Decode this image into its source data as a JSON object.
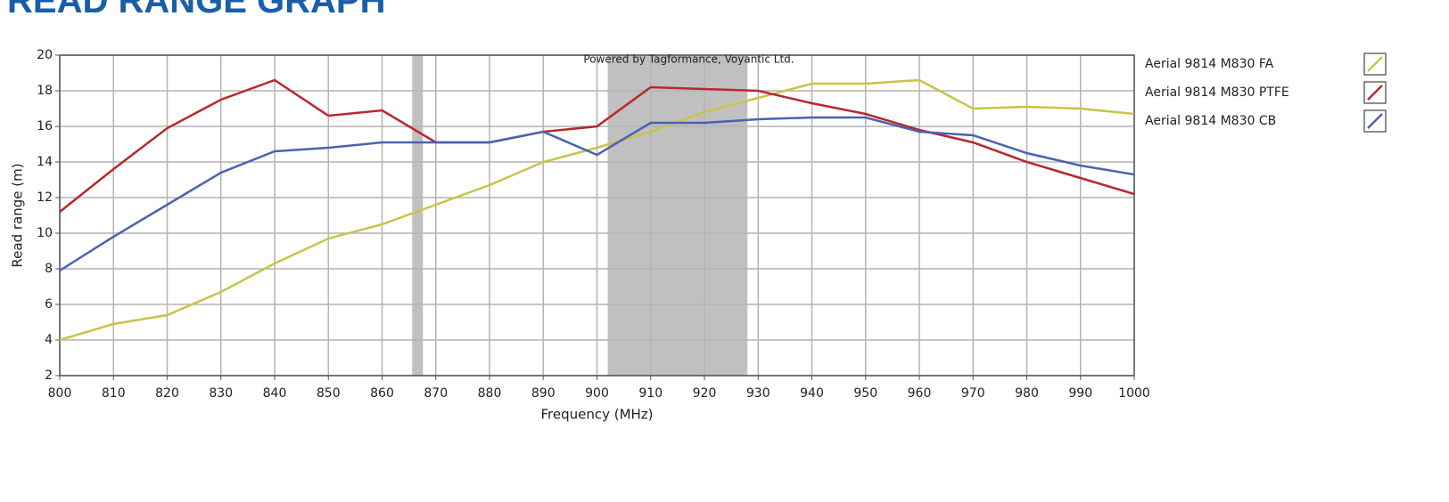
{
  "chart_data": {
    "type": "line",
    "title": "READ RANGE GRAPH",
    "annotation": "Powered by Tagformance, Voyantic Ltd.",
    "xlabel": "Frequency (MHz)",
    "ylabel": "Read range (m)",
    "x": [
      800,
      810,
      820,
      830,
      840,
      850,
      860,
      870,
      880,
      890,
      900,
      910,
      920,
      930,
      940,
      950,
      960,
      970,
      980,
      990,
      1000
    ],
    "series": [
      {
        "name": "Aerial 9814 M830 FA",
        "color": "#c8c448",
        "values": [
          4.0,
          4.9,
          5.4,
          6.7,
          8.3,
          9.7,
          10.5,
          11.6,
          12.7,
          14.0,
          14.8,
          15.7,
          16.8,
          17.6,
          18.4,
          18.4,
          18.6,
          17.0,
          17.1,
          17.0,
          16.7
        ]
      },
      {
        "name": "Aerial 9814 M830 PTFE",
        "color": "#b8282e",
        "values": [
          11.2,
          13.6,
          15.9,
          17.5,
          18.6,
          16.6,
          16.9,
          15.1,
          15.1,
          15.7,
          16.0,
          18.2,
          18.1,
          18.0,
          17.3,
          16.7,
          15.8,
          15.1,
          14.0,
          13.1,
          12.2
        ]
      },
      {
        "name": "Aerial 9814 M830 CB",
        "color": "#4a62b4",
        "values": [
          7.9,
          9.8,
          11.6,
          13.4,
          14.6,
          14.8,
          15.1,
          15.1,
          15.1,
          15.7,
          14.4,
          16.2,
          16.2,
          16.4,
          16.5,
          16.5,
          15.7,
          15.5,
          14.5,
          13.8,
          13.3
        ]
      }
    ],
    "bands": [
      [
        865.6,
        867.6
      ],
      [
        902,
        928
      ]
    ],
    "band_color": "#c0c0c0",
    "xlim": [
      800,
      1000
    ],
    "xticks": [
      800,
      810,
      820,
      830,
      840,
      850,
      860,
      870,
      880,
      890,
      900,
      910,
      920,
      930,
      940,
      950,
      960,
      970,
      980,
      990,
      1000
    ],
    "ylim": [
      2,
      20
    ],
    "yticks": [
      2,
      4,
      6,
      8,
      10,
      12,
      14,
      16,
      18,
      20
    ],
    "grid": true
  }
}
